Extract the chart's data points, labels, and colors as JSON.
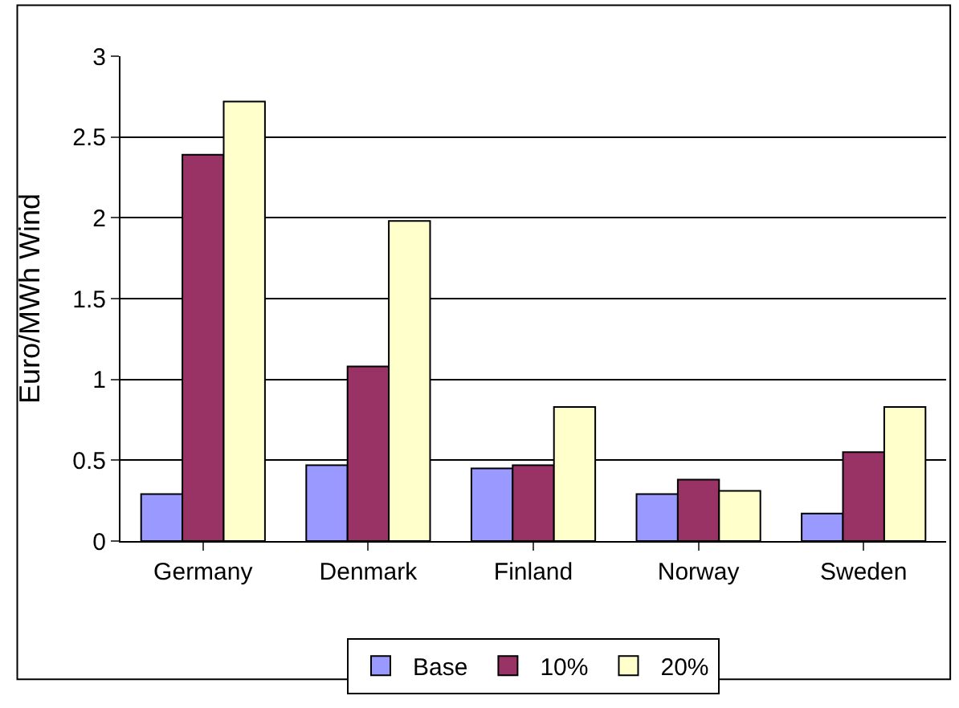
{
  "chart_data": {
    "type": "bar",
    "ylabel": "Euro/MWh Wind",
    "categories": [
      "Germany",
      "Denmark",
      "Finland",
      "Norway",
      "Sweden"
    ],
    "series": [
      {
        "name": "Base",
        "color": "#9999ff",
        "values": [
          0.29,
          0.47,
          0.45,
          0.29,
          0.17
        ]
      },
      {
        "name": "10%",
        "color": "#993366",
        "values": [
          2.39,
          1.08,
          0.47,
          0.38,
          0.55
        ]
      },
      {
        "name": "20%",
        "color": "#ffffcc",
        "values": [
          2.72,
          1.98,
          0.83,
          0.31,
          0.83
        ]
      }
    ],
    "ylim": [
      0,
      3
    ],
    "yticks": [
      0,
      0.5,
      1,
      1.5,
      2,
      2.5,
      3
    ],
    "grid": "y",
    "legend": "bottom"
  }
}
